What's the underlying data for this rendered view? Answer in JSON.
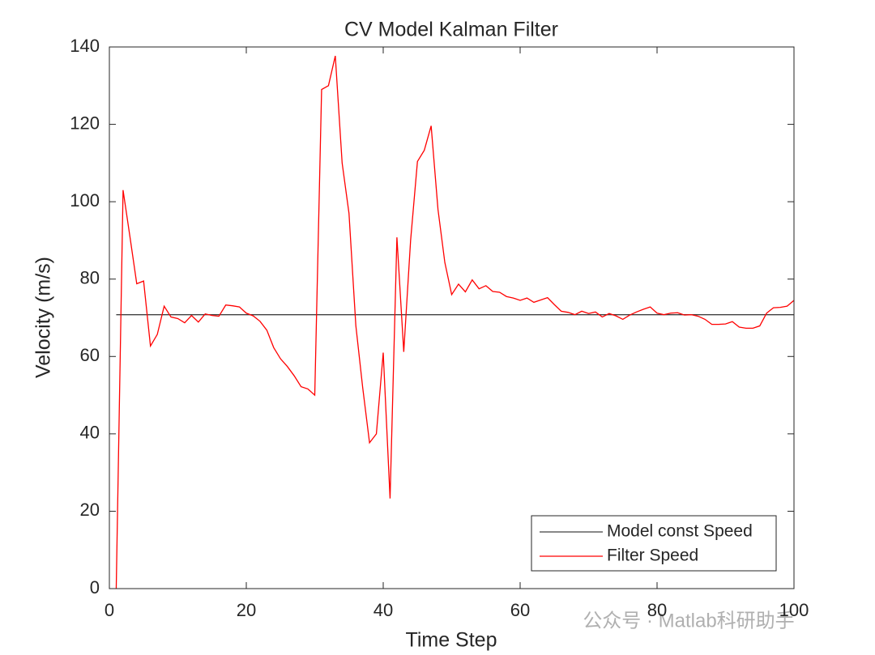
{
  "chart_data": {
    "type": "line",
    "title": "CV Model Kalman Filter",
    "xlabel": "Time Step",
    "ylabel": "Velocity (m/s)",
    "xlim": [
      0,
      100
    ],
    "ylim": [
      0,
      140
    ],
    "xticks": [
      0,
      20,
      40,
      60,
      80,
      100
    ],
    "yticks": [
      0,
      20,
      40,
      60,
      80,
      100,
      120,
      140
    ],
    "legend": "lower right",
    "watermark": "公众号 · Matlab科研助手",
    "series": [
      {
        "name": "Model const Speed",
        "color": "#404040",
        "x": [
          1,
          100
        ],
        "values": [
          70.8,
          70.8
        ]
      },
      {
        "name": "Filter Speed",
        "color": "#ff0000",
        "x": [
          1,
          2,
          3,
          4,
          5,
          6,
          7,
          8,
          9,
          10,
          11,
          12,
          13,
          14,
          15,
          16,
          17,
          18,
          19,
          20,
          21,
          22,
          23,
          24,
          25,
          26,
          27,
          28,
          29,
          30,
          31,
          32,
          33,
          34,
          35,
          36,
          37,
          38,
          39,
          40,
          41,
          42,
          43,
          44,
          45,
          46,
          47,
          48,
          49,
          50,
          51,
          52,
          53,
          54,
          55,
          56,
          57,
          58,
          59,
          60,
          61,
          62,
          63,
          64,
          65,
          66,
          67,
          68,
          69,
          70,
          71,
          72,
          73,
          74,
          75,
          76,
          77,
          78,
          79,
          80,
          81,
          82,
          83,
          84,
          85,
          86,
          87,
          88,
          89,
          90,
          91,
          92,
          93,
          94,
          95,
          96,
          97,
          98,
          99,
          100
        ],
        "values": [
          0,
          103,
          91,
          78.8,
          79.5,
          62.7,
          65.7,
          73,
          70.2,
          69.8,
          68.7,
          70.6,
          68.9,
          71,
          70.6,
          70.4,
          73.3,
          73.1,
          72.8,
          71.2,
          70.5,
          69.1,
          66.8,
          62.3,
          59.4,
          57.4,
          55,
          52.2,
          51.6,
          50,
          129,
          130,
          137.7,
          110,
          97,
          68,
          52,
          37.7,
          40,
          61,
          23.3,
          90.8,
          61.2,
          90,
          110.4,
          113.3,
          119.6,
          98,
          84.3,
          76,
          78.7,
          76.7,
          79.8,
          77.5,
          78.3,
          76.8,
          76.6,
          75.5,
          75.1,
          74.5,
          75.1,
          74,
          74.6,
          75.2,
          73.4,
          71.7,
          71.4,
          70.8,
          71.7,
          71.1,
          71.5,
          70.2,
          71.1,
          70.5,
          69.6,
          70.7,
          71.5,
          72.2,
          72.8,
          71.2,
          70.8,
          71.2,
          71.3,
          70.7,
          70.8,
          70.4,
          69.6,
          68.3,
          68.3,
          68.4,
          69,
          67.6,
          67.3,
          67.3,
          67.9,
          71.2,
          72.6,
          72.7,
          73,
          74.5
        ]
      }
    ]
  }
}
